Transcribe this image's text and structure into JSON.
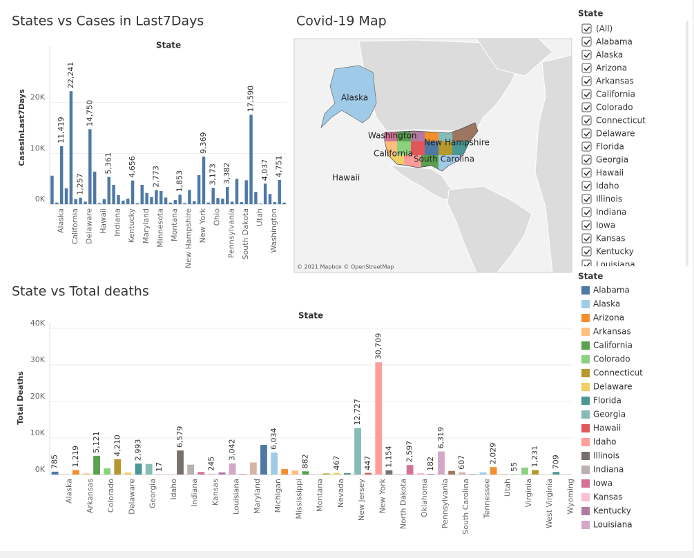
{
  "chart_data": [
    {
      "type": "bar",
      "title": "States vs Cases in Last7Days",
      "x_label": "State",
      "y_label": "CasesInLast7Days",
      "categories": [
        null,
        "Alaska",
        null,
        null,
        "California",
        null,
        null,
        "Delaware",
        null,
        null,
        "Hawaii",
        null,
        null,
        "Indiana",
        null,
        null,
        "Kentucky",
        null,
        null,
        "Maryland",
        null,
        null,
        "Minnesota",
        null,
        null,
        "Montana",
        null,
        null,
        "New Hampshire",
        null,
        null,
        "New York",
        null,
        null,
        "Ohio",
        null,
        null,
        "Pennsylvania",
        null,
        null,
        "South Dakota",
        null,
        null,
        "Utah",
        null,
        null,
        "Washington",
        null,
        null,
        null
      ],
      "values": [
        5600,
        300,
        11419,
        3100,
        22241,
        1000,
        1257,
        500,
        14750,
        6400,
        200,
        1000,
        5361,
        3800,
        1800,
        700,
        1100,
        4656,
        200,
        3800,
        2200,
        1400,
        2773,
        2600,
        1300,
        300,
        800,
        1853,
        200,
        2800,
        600,
        5700,
        9369,
        300,
        3173,
        1200,
        1100,
        3382,
        500,
        5000,
        400,
        4700,
        17590,
        2400,
        100,
        4037,
        2000,
        400,
        4751,
        300
      ],
      "value_labels": [
        null,
        null,
        "11,419",
        null,
        "22,241",
        null,
        "1,257",
        null,
        "14,750",
        null,
        null,
        null,
        "5,361",
        null,
        null,
        null,
        null,
        "4,656",
        null,
        null,
        null,
        null,
        "2,773",
        null,
        null,
        null,
        null,
        "1,853",
        null,
        null,
        null,
        null,
        "9,369",
        null,
        "3,173",
        null,
        null,
        "3,382",
        null,
        null,
        null,
        null,
        "17,590",
        null,
        null,
        "4,037",
        null,
        null,
        "4,751",
        null
      ],
      "color": "#4e79a7",
      "ylim": [
        0,
        30000
      ],
      "yticks": [
        {
          "value": 0,
          "label": "0K"
        },
        {
          "value": 10000,
          "label": "10K"
        },
        {
          "value": 20000,
          "label": "20K"
        }
      ],
      "grid": true
    },
    {
      "type": "bar",
      "title": "State vs Total deaths",
      "x_label": "State",
      "y_label": "Total Deaths",
      "categories": [
        null,
        "Alaska",
        null,
        "Arkansas",
        null,
        "Colorado",
        null,
        "Delaware",
        null,
        "Georgia",
        null,
        "Idaho",
        null,
        "Indiana",
        null,
        "Kansas",
        null,
        "Louisiana",
        null,
        "Maryland",
        null,
        "Michigan",
        null,
        "Mississippi",
        null,
        "Montana",
        null,
        "Nevada",
        null,
        "New Jersey",
        null,
        "New York",
        null,
        "North Dakota",
        null,
        "Oklahoma",
        null,
        "Pennsylvania",
        null,
        "South Carolina",
        null,
        "Tennessee",
        null,
        "Utah",
        null,
        "Virginia",
        null,
        "West Virginia",
        null,
        "Wyoming"
      ],
      "values": [
        785,
        17,
        1219,
        300,
        5121,
        1700,
        4210,
        520,
        2993,
        2900,
        17,
        100,
        6579,
        2700,
        700,
        245,
        600,
        3042,
        110,
        3300,
        8100,
        6034,
        1500,
        1100,
        882,
        30,
        290,
        467,
        400,
        12727,
        447,
        30709,
        1154,
        90,
        2597,
        400,
        182,
        6319,
        980,
        607,
        100,
        600,
        2029,
        170,
        55,
        1900,
        1231,
        95,
        709,
        25
      ],
      "value_labels": [
        "785",
        null,
        "1,219",
        null,
        "5,121",
        null,
        "4,210",
        null,
        "2,993",
        null,
        "17",
        null,
        "6,579",
        null,
        null,
        "245",
        null,
        "3,042",
        null,
        null,
        null,
        "6,034",
        null,
        null,
        "882",
        null,
        null,
        "467",
        null,
        "12,727",
        "447",
        "30,709",
        "1,154",
        null,
        "2,597",
        null,
        "182",
        "6,319",
        null,
        "607",
        null,
        null,
        "2,029",
        null,
        "55",
        null,
        "1,231",
        null,
        "709",
        null
      ],
      "colors": [
        "#4e79a7",
        "#a0cbe8",
        "#f28e2b",
        "#ffbe7d",
        "#59a14f",
        "#8cd17d",
        "#b6992d",
        "#f1ce63",
        "#499894",
        "#86bcb6",
        "#e15759",
        "#ff9d9a",
        "#79706e",
        "#bab0ac",
        "#d37295",
        "#fabfd2",
        "#b07aa1",
        "#d4a6c8",
        "#9d7660",
        "#d7b5a6",
        "#4e79a7",
        "#a0cbe8",
        "#f28e2b",
        "#ffbe7d",
        "#59a14f",
        "#8cd17d",
        "#b6992d",
        "#f1ce63",
        "#499894",
        "#86bcb6",
        "#e15759",
        "#ff9d9a",
        "#79706e",
        "#bab0ac",
        "#d37295",
        "#fabfd2",
        "#b07aa1",
        "#d4a6c8",
        "#9d7660",
        "#d7b5a6",
        "#4e79a7",
        "#a0cbe8",
        "#f28e2b",
        "#ffbe7d",
        "#59a14f",
        "#8cd17d",
        "#b6992d",
        "#f1ce63",
        "#499894",
        "#86bcb6"
      ],
      "ylim": [
        0,
        40000
      ],
      "yticks": [
        {
          "value": 0,
          "label": "0K"
        },
        {
          "value": 10000,
          "label": "10K"
        },
        {
          "value": 20000,
          "label": "20K"
        },
        {
          "value": 30000,
          "label": "30K"
        },
        {
          "value": 40000,
          "label": "40K"
        }
      ],
      "grid": true
    }
  ],
  "map": {
    "title": "Covid-19 Map",
    "labels": [
      "Alaska",
      "Washington",
      "New Hampshire",
      "California",
      "South Carolina",
      "Hawaii"
    ],
    "attribution": "© 2021 Mapbox © OpenStreetMap"
  },
  "filter": {
    "title": "State",
    "items": [
      "(All)",
      "Alabama",
      "Alaska",
      "Arizona",
      "Arkansas",
      "California",
      "Colorado",
      "Connecticut",
      "Delaware",
      "Florida",
      "Georgia",
      "Hawaii",
      "Idaho",
      "Illinois",
      "Indiana",
      "Iowa",
      "Kansas",
      "Kentucky",
      "Louisiana"
    ]
  },
  "legend": {
    "title": "State",
    "items": [
      "Alabama",
      "Alaska",
      "Arizona",
      "Arkansas",
      "California",
      "Colorado",
      "Connecticut",
      "Delaware",
      "Florida",
      "Georgia",
      "Hawaii",
      "Idaho",
      "Illinois",
      "Indiana",
      "Iowa",
      "Kansas",
      "Kentucky",
      "Louisiana"
    ]
  }
}
